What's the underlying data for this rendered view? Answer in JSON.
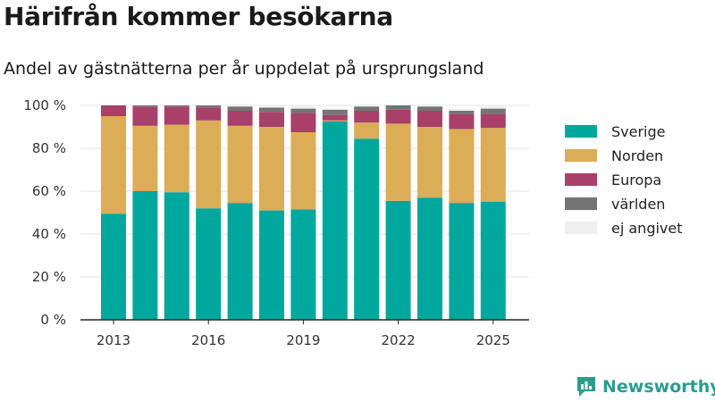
{
  "title": "Härifrån kommer besökarna",
  "subtitle": "Andel av gästnätterna per år uppdelat på ursprungsland",
  "brand": {
    "name": "Newsworthy",
    "icon": "newsworthy-logo-icon"
  },
  "chart_data": {
    "type": "bar",
    "stacked": true,
    "categories": [
      2013,
      2014,
      2015,
      2016,
      2017,
      2018,
      2019,
      2020,
      2021,
      2022,
      2023,
      2024,
      2025
    ],
    "x_tick_labels": [
      "2013",
      "2016",
      "2019",
      "2022",
      "2025"
    ],
    "y_tick_labels": [
      "0 %",
      "20 %",
      "40 %",
      "60 %",
      "80 %",
      "100 %"
    ],
    "ylim": [
      0,
      100
    ],
    "grid": true,
    "legend_position": "right",
    "series": [
      {
        "name": "Sverige",
        "color": "#00a79d",
        "values": [
          49.5,
          60,
          59.5,
          52,
          54.5,
          51,
          51.5,
          92.5,
          84.5,
          55.5,
          57,
          54.5,
          55
        ]
      },
      {
        "name": "Norden",
        "color": "#daad56",
        "values": [
          45.5,
          30.5,
          31.5,
          41,
          36,
          39,
          36,
          0.5,
          7.5,
          36,
          33,
          34.5,
          34.5
        ]
      },
      {
        "name": "Europa",
        "color": "#a8406a",
        "values": [
          5,
          9,
          8.5,
          6,
          7,
          7,
          9,
          2.5,
          5.5,
          6.5,
          7.5,
          7,
          6.5
        ]
      },
      {
        "name": "världen",
        "color": "#747476",
        "values": [
          0,
          0.5,
          0.5,
          1,
          2,
          2,
          2,
          2.5,
          2,
          2,
          2,
          1.5,
          2.5
        ]
      },
      {
        "name": "ej angivet",
        "color": "#efeff1",
        "values": [
          0,
          0,
          0,
          0,
          0.5,
          1,
          1,
          0.5,
          0.5,
          0,
          0.5,
          1,
          1
        ]
      }
    ]
  }
}
